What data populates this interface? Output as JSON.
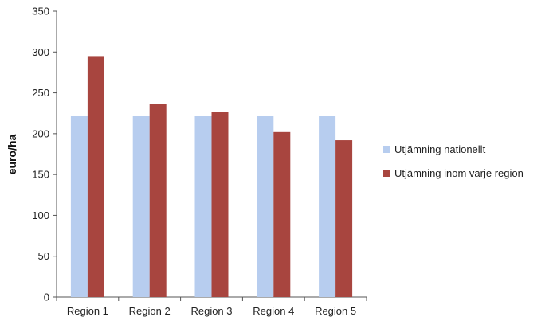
{
  "chart_data": {
    "type": "bar",
    "title": "",
    "xlabel": "",
    "ylabel": "euro/ha",
    "categories": [
      "Region 1",
      "Region 2",
      "Region 3",
      "Region 4",
      "Region 5"
    ],
    "series": [
      {
        "name": "Utjämning nationellt",
        "color": "#b7cdef",
        "values": [
          222,
          222,
          222,
          222,
          222
        ]
      },
      {
        "name": "Utjämning inom varje region",
        "color": "#a8453f",
        "values": [
          295,
          236,
          227,
          202,
          192
        ]
      }
    ],
    "ylim": [
      0,
      350
    ],
    "yticks": [
      0,
      50,
      100,
      150,
      200,
      250,
      300,
      350
    ],
    "grid": false,
    "legend_position": "right"
  }
}
